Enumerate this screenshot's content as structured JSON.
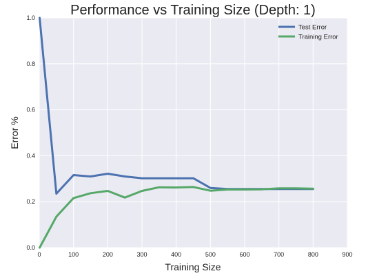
{
  "chart_data": {
    "type": "line",
    "title": "Performance vs Training Size (Depth: 1)",
    "xlabel": "Training Size",
    "ylabel": "Error %",
    "xlim": [
      0,
      900
    ],
    "ylim": [
      0.0,
      1.0
    ],
    "x_ticks": [
      0,
      100,
      200,
      300,
      400,
      500,
      600,
      700,
      800,
      900
    ],
    "y_ticks": [
      0.0,
      0.2,
      0.4,
      0.6,
      0.8,
      1.0
    ],
    "grid": true,
    "legend": "top-right",
    "x": [
      1,
      50,
      100,
      150,
      200,
      250,
      300,
      350,
      400,
      450,
      500,
      550,
      600,
      650,
      700,
      750,
      800
    ],
    "series": [
      {
        "name": "Test Error",
        "color": "#4c72b0",
        "values": [
          1.0,
          0.235,
          0.316,
          0.31,
          0.322,
          0.31,
          0.302,
          0.302,
          0.302,
          0.302,
          0.26,
          0.255,
          0.255,
          0.255,
          0.255,
          0.255,
          0.255
        ]
      },
      {
        "name": "Training Error",
        "color": "#55a868",
        "values": [
          0.0,
          0.135,
          0.216,
          0.237,
          0.247,
          0.218,
          0.247,
          0.263,
          0.262,
          0.264,
          0.248,
          0.253,
          0.253,
          0.254,
          0.258,
          0.258,
          0.257
        ]
      }
    ]
  }
}
